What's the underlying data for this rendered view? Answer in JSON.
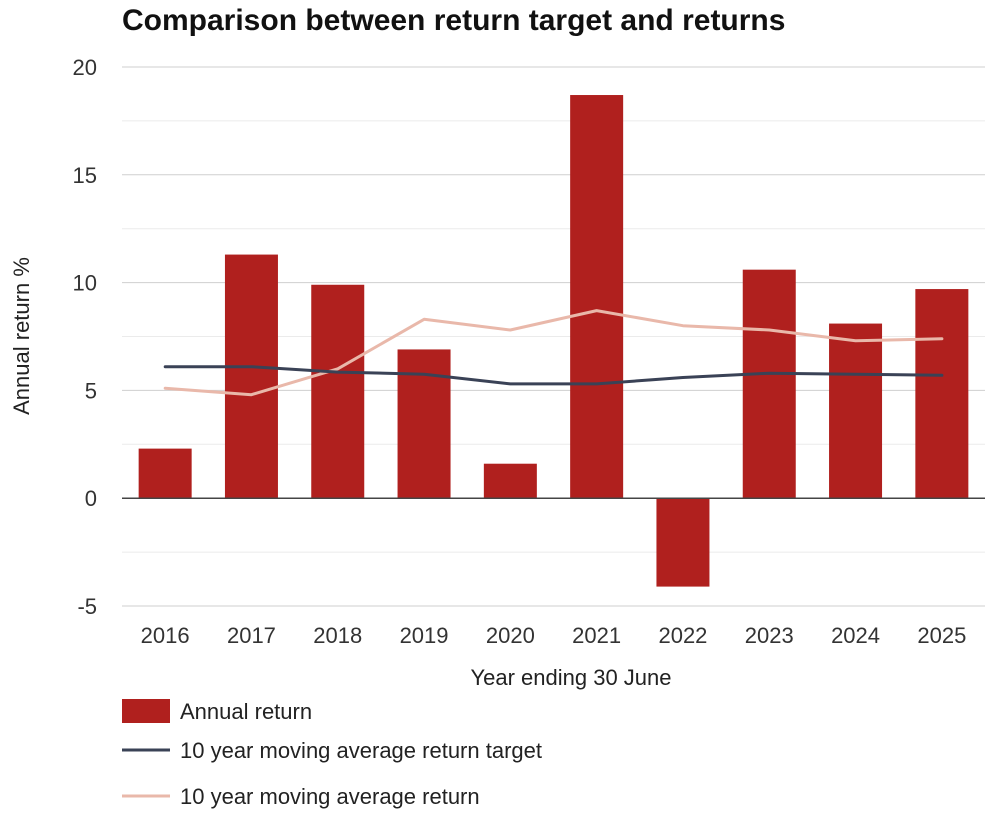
{
  "chart_data": {
    "type": "bar",
    "title": "Comparison between return target and returns",
    "xlabel": "Year ending 30 June",
    "ylabel": "Annual return %",
    "ylim": [
      -5,
      20
    ],
    "yticks": [
      -5,
      0,
      5,
      10,
      15,
      20
    ],
    "grid": true,
    "categories": [
      "2016",
      "2017",
      "2018",
      "2019",
      "2020",
      "2021",
      "2022",
      "2023",
      "2024",
      "2025"
    ],
    "series": [
      {
        "name": "Annual return",
        "type": "bar",
        "color": "#b0201e",
        "values": [
          2.3,
          11.3,
          9.9,
          6.9,
          1.6,
          18.7,
          -4.1,
          10.6,
          8.1,
          9.7
        ]
      },
      {
        "name": "10 year moving average return target",
        "type": "line",
        "color": "#3a4256",
        "values": [
          6.1,
          6.1,
          5.85,
          5.75,
          5.3,
          5.3,
          5.6,
          5.8,
          5.75,
          5.7
        ]
      },
      {
        "name": "10 year moving average return",
        "type": "line",
        "color": "#e9b8aa",
        "values": [
          5.1,
          4.8,
          6.0,
          8.3,
          7.8,
          8.7,
          8.0,
          7.8,
          7.3,
          7.4
        ]
      }
    ],
    "legend_position": "bottom-left"
  }
}
